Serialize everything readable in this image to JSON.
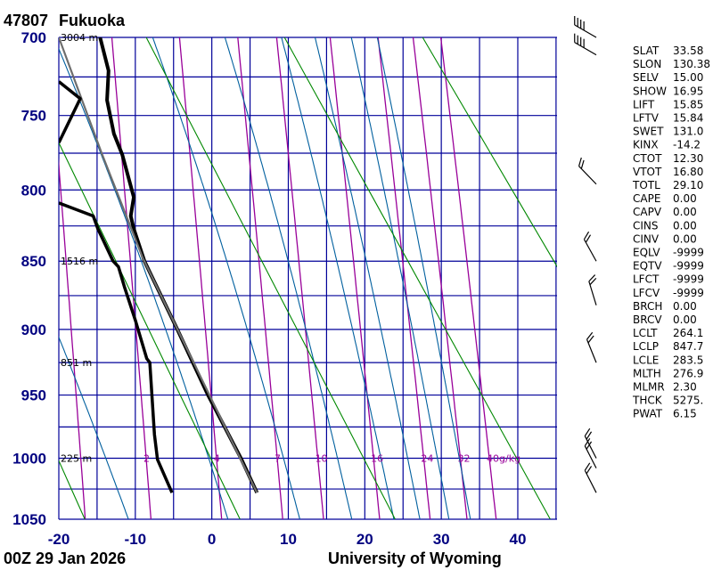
{
  "header": {
    "station_id": "47807",
    "station_name": "Fukuoka"
  },
  "footer": {
    "time": "00Z 29 Jan 2026",
    "source": "University of Wyoming"
  },
  "indices": [
    {
      "label": "SLAT",
      "value": "33.58"
    },
    {
      "label": "SLON",
      "value": "130.38"
    },
    {
      "label": "SELV",
      "value": "15.00"
    },
    {
      "label": "SHOW",
      "value": "16.95"
    },
    {
      "label": "LIFT",
      "value": "15.85"
    },
    {
      "label": "LFTV",
      "value": "15.84"
    },
    {
      "label": "SWET",
      "value": "131.0"
    },
    {
      "label": "KINX",
      "value": "-14.2"
    },
    {
      "label": "CTOT",
      "value": "12.30"
    },
    {
      "label": "VTOT",
      "value": "16.80"
    },
    {
      "label": "TOTL",
      "value": "29.10"
    },
    {
      "label": "CAPE",
      "value": "0.00"
    },
    {
      "label": "CAPV",
      "value": "0.00"
    },
    {
      "label": "CINS",
      "value": "0.00"
    },
    {
      "label": "CINV",
      "value": "0.00"
    },
    {
      "label": "EQLV",
      "value": "-9999"
    },
    {
      "label": "EQTV",
      "value": "-9999"
    },
    {
      "label": "LFCT",
      "value": "-9999"
    },
    {
      "label": "LFCV",
      "value": "-9999"
    },
    {
      "label": "BRCH",
      "value": "0.00"
    },
    {
      "label": "BRCV",
      "value": "0.00"
    },
    {
      "label": "LCLT",
      "value": "264.1"
    },
    {
      "label": "LCLP",
      "value": "847.7"
    },
    {
      "label": "LCLE",
      "value": "283.5"
    },
    {
      "label": "MLTH",
      "value": "276.9"
    },
    {
      "label": "MLMR",
      "value": "2.30"
    },
    {
      "label": "THCK",
      "value": "5275."
    },
    {
      "label": "PWAT",
      "value": "6.15"
    }
  ],
  "colors": {
    "grid": "#000099",
    "axis_text": "#000080",
    "dry_adiabat": "#008800",
    "moist_adiabat": "#005f9e",
    "mixing_ratio": "#990099",
    "temperature": "#000000",
    "dewpoint": "#000000",
    "parcel": "#6e6e6e"
  },
  "chart_data": {
    "type": "line",
    "title": "47807  Fukuoka",
    "xlim": [
      -20,
      45
    ],
    "ylim": [
      1050,
      700
    ],
    "x_ticks": [
      {
        "value": -20,
        "text": "-20"
      },
      {
        "value": -10,
        "text": "-10"
      },
      {
        "value": 0,
        "text": "0"
      },
      {
        "value": 10,
        "text": "10"
      },
      {
        "value": 20,
        "text": "20"
      },
      {
        "value": 30,
        "text": "30"
      },
      {
        "value": 40,
        "text": "40"
      }
    ],
    "y_ticks": [
      {
        "value": 700,
        "text": "700"
      },
      {
        "value": 750,
        "text": "750"
      },
      {
        "value": 800,
        "text": "800"
      },
      {
        "value": 850,
        "text": "850"
      },
      {
        "value": 900,
        "text": "900"
      },
      {
        "value": 950,
        "text": "950"
      },
      {
        "value": 1000,
        "text": "1000"
      },
      {
        "value": 1050,
        "text": "1050"
      }
    ],
    "grid": {
      "isotherm_step_C": 5,
      "isobar_step_hPa": 25
    },
    "height_labels": [
      {
        "p": 700,
        "text": "3004 m"
      },
      {
        "p": 850,
        "text": "1516 m"
      },
      {
        "p": 925,
        "text": "851 m"
      },
      {
        "p": 1000,
        "text": "225 m"
      }
    ],
    "mixing_ratio_gkg": [
      1,
      2,
      4,
      7,
      10,
      16,
      24,
      32,
      40
    ],
    "mixing_ratio_labels": [
      {
        "w": 2,
        "text": "2"
      },
      {
        "w": 4,
        "text": "4"
      },
      {
        "w": 7,
        "text": "7"
      },
      {
        "w": 10,
        "text": "10"
      },
      {
        "w": 16,
        "text": "16"
      },
      {
        "w": 24,
        "text": "24"
      },
      {
        "w": 32,
        "text": "32"
      },
      {
        "w": 40,
        "text": "40g/kg"
      }
    ],
    "dry_adiabats_K": [
      253,
      273,
      293,
      313,
      333,
      353
    ],
    "moist_adiabats_T1050_C": [
      -10.9,
      2.1,
      11.5,
      18.3,
      23.8,
      27.2,
      31.0,
      33.8
    ],
    "series": [
      {
        "name": "temperature",
        "points": [
          [
            700,
            -14.6
          ],
          [
            721,
            -13.5
          ],
          [
            740,
            -13.7
          ],
          [
            762,
            -12.8
          ],
          [
            776,
            -11.7
          ],
          [
            805,
            -10.2
          ],
          [
            818,
            -10.6
          ],
          [
            827,
            -10.2
          ],
          [
            850,
            -8.8
          ],
          [
            865,
            -7.5
          ],
          [
            900,
            -4.5
          ],
          [
            950,
            -0.5
          ],
          [
            1000,
            3.8
          ],
          [
            1028,
            5.9
          ]
        ]
      },
      {
        "name": "dewpoint",
        "points": [
          [
            809,
            -20.0
          ],
          [
            818,
            -15.5
          ],
          [
            827,
            -14.9
          ],
          [
            850,
            -12.9
          ],
          [
            854,
            -12.2
          ],
          [
            869,
            -11.4
          ],
          [
            893,
            -10.0
          ],
          [
            922,
            -8.5
          ],
          [
            925,
            -8.1
          ],
          [
            981,
            -7.5
          ],
          [
            1001,
            -7.1
          ],
          [
            1028,
            -5.2
          ]
        ]
      },
      {
        "name": "dewpoint-upper",
        "points": [
          [
            728,
            -20.0
          ],
          [
            739,
            -17.2
          ],
          [
            768,
            -20.0
          ]
        ]
      },
      {
        "name": "parcel",
        "points": [
          [
            1028,
            5.9
          ],
          [
            848,
            -9.0
          ],
          [
            775,
            -14.4
          ],
          [
            700,
            -20.0
          ]
        ]
      }
    ],
    "wind_barbs": [
      {
        "p": 700,
        "dir": 300,
        "kt": 40
      },
      {
        "p": 711,
        "dir": 300,
        "kt": 40
      },
      {
        "p": 796,
        "dir": 316,
        "kt": 20
      },
      {
        "p": 850,
        "dir": 331,
        "kt": 20
      },
      {
        "p": 882,
        "dir": 343,
        "kt": 20
      },
      {
        "p": 925,
        "dir": 338,
        "kt": 20
      },
      {
        "p": 1000,
        "dir": 333,
        "kt": 20
      },
      {
        "p": 1008,
        "dir": 333,
        "kt": 20
      },
      {
        "p": 1028,
        "dir": 333,
        "kt": 20
      }
    ]
  }
}
